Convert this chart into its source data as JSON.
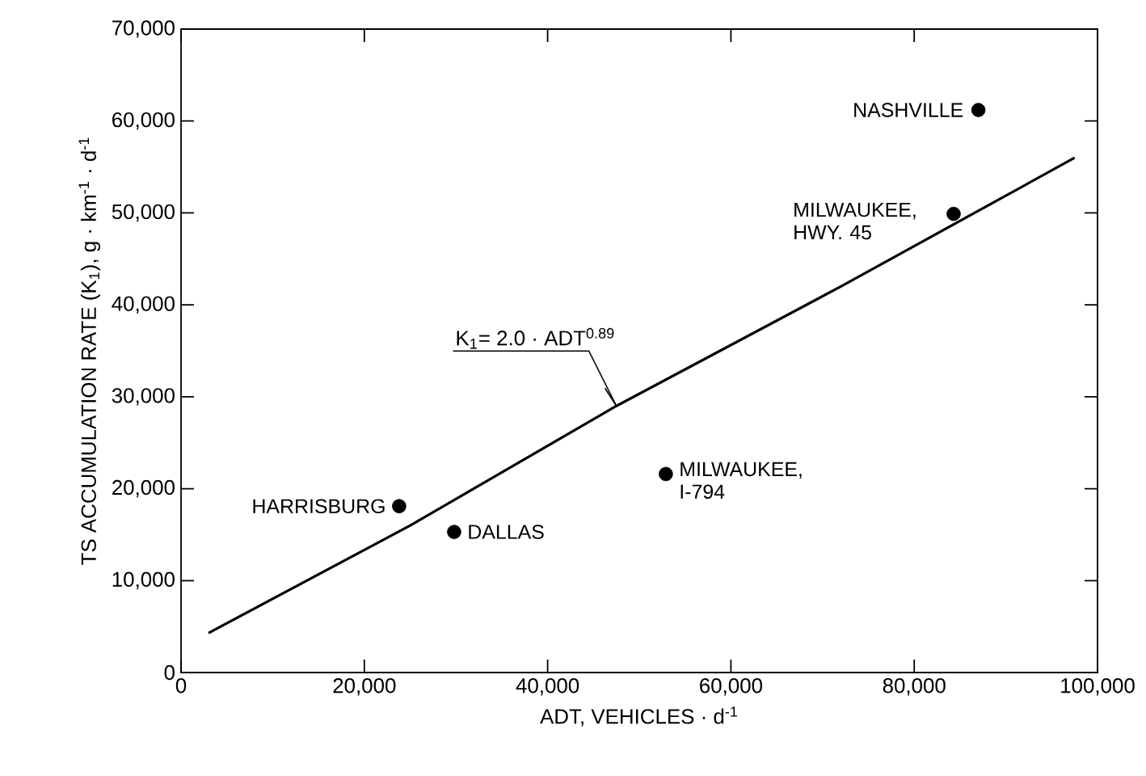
{
  "chart_data": {
    "type": "scatter",
    "xlabel": "ADT, VEHICLES · d$^{-1}$",
    "ylabel": "TS ACCUMULATION RATE (K$_{1}$), g · km$^{-1}$ · d$^{-1}$",
    "xlim": [
      0,
      100000
    ],
    "ylim": [
      0,
      70000
    ],
    "xticks": [
      0,
      {
        "value": 20000,
        "label": "20,000"
      },
      {
        "value": 40000,
        "label": "40,000"
      },
      {
        "value": 60000,
        "label": "60,000"
      },
      {
        "value": 80000,
        "label": "80,000"
      },
      {
        "value": 100000,
        "label": "100,000"
      }
    ],
    "yticks": [
      0,
      {
        "value": 10000,
        "label": "10,000"
      },
      {
        "value": 20000,
        "label": "20,000"
      },
      {
        "value": 30000,
        "label": "30,000"
      },
      {
        "value": 40000,
        "label": "40,000"
      },
      {
        "value": 50000,
        "label": "50,000"
      },
      {
        "value": 60000,
        "label": "60,000"
      },
      {
        "value": 70000,
        "label": "70,000"
      }
    ],
    "grid": false,
    "series": [
      {
        "color": "#000000",
        "marker": "circle",
        "x": [
          23800,
          29800,
          52900,
          84300,
          87000
        ],
        "values": [
          18100,
          15300,
          21600,
          49900,
          61200
        ]
      },
      {
        "type": "line",
        "color": "#000000",
        "line_style": "solid",
        "marker": "none",
        "x": [
          3000,
          25000,
          47500,
          72000,
          97500
        ],
        "values": [
          4300,
          16000,
          29000,
          42000,
          56000
        ]
      }
    ],
    "annotations": [
      {
        "text": "HARRISBURG",
        "x": 23800,
        "y": 18100
      },
      {
        "text": "DALLAS",
        "x": 29800,
        "y": 15300
      },
      {
        "text": "MILWAUKEE, I-794",
        "x": 52900,
        "y": 21600
      },
      {
        "text": "MILWAUKEE, HWY. 45",
        "x": 84300,
        "y": 49900
      },
      {
        "text": "NASHVILLE",
        "x": 87000,
        "y": 61200
      },
      {
        "text": "K$_{1}$= 2.0 · ADT$^{0.89}$",
        "x": 47500,
        "y": 29000
      }
    ]
  }
}
